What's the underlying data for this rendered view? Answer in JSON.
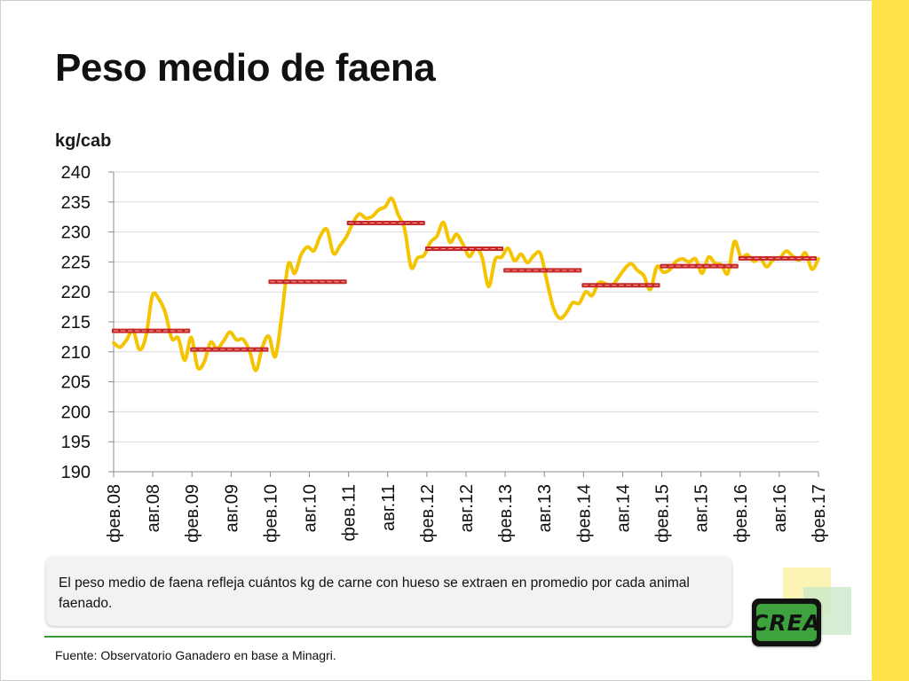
{
  "slide": {
    "title": "Peso medio de faena",
    "unit_label": "kg/cab",
    "note": "El peso medio de faena refleja cuántos kg de carne con hueso se extraen en promedio por cada animal faenado.",
    "source": "Fuente: Observatorio Ganadero en base a Minagri.",
    "logo_text": "CREA",
    "colors": {
      "accent_yellow": "#fde24a",
      "line": "#f5c400",
      "average": "#c62828",
      "divider": "#3a9a3a",
      "logo_green": "#3ea33e"
    }
  },
  "chart_data": {
    "type": "line",
    "title": "Peso medio de faena",
    "ylabel": "kg/cab",
    "xlabel": "",
    "ylim": [
      190,
      240
    ],
    "yticks": [
      240,
      235,
      230,
      225,
      220,
      215,
      210,
      205,
      200,
      195,
      190
    ],
    "grid": true,
    "x_tick_labels": [
      "фев.08",
      "авг.08",
      "фев.09",
      "авг.09",
      "фев.10",
      "авг.10",
      "фев.11",
      "авг.11",
      "фев.12",
      "авг.12",
      "фев.13",
      "авг.13",
      "фев.14",
      "авг.14",
      "фев.15",
      "авг.15",
      "фев.16",
      "авг.16",
      "фев.17"
    ],
    "series": [
      {
        "style": "line",
        "values": [
          211.5,
          210.8,
          212.0,
          213.6,
          210.4,
          212.6,
          219.4,
          218.8,
          216.5,
          212.2,
          212.3,
          208.6,
          212.4,
          207.4,
          208.3,
          211.6,
          210.5,
          211.8,
          213.3,
          212.0,
          212.1,
          210.2,
          206.9,
          210.8,
          212.6,
          209.2,
          216.0,
          224.6,
          223.1,
          226.2,
          227.5,
          226.9,
          229.4,
          230.4,
          226.4,
          227.7,
          229.2,
          231.5,
          233.0,
          232.3,
          232.6,
          233.7,
          234.2,
          235.6,
          232.9,
          230.5,
          224.1,
          225.7,
          226.1,
          228.3,
          229.3,
          231.6,
          228.3,
          229.6,
          228.0,
          225.9,
          227.3,
          225.7,
          220.9,
          225.4,
          225.8,
          227.3,
          225.2,
          226.3,
          224.9,
          226.1,
          226.4,
          221.8,
          217.4,
          215.6,
          216.5,
          218.2,
          218.1,
          220.0,
          219.4,
          221.5,
          221.4,
          221.0,
          222.3,
          223.8,
          224.7,
          223.6,
          222.7,
          220.4,
          224.2,
          223.3,
          223.7,
          225.1,
          225.5,
          225.0,
          225.5,
          223.1,
          225.8,
          224.8,
          224.5,
          223.1,
          228.4,
          225.8,
          226.2,
          225.1,
          225.6,
          224.2,
          225.4,
          225.6,
          226.8,
          226.0,
          225.3,
          226.5,
          223.8,
          225.5
        ]
      },
      {
        "style": "annual-average",
        "periods": [
          "фев.08–фев.09",
          "фев.09–фев.10",
          "фев.10–фев.11",
          "фев.11–фев.12",
          "фев.12–фев.13",
          "фев.13–фев.14",
          "фев.14–фев.15",
          "фев.15–фев.16",
          "фев.16–фев.17"
        ],
        "values": [
          213.5,
          210.4,
          221.7,
          231.5,
          227.2,
          223.6,
          221.1,
          224.3,
          225.6
        ]
      }
    ]
  }
}
